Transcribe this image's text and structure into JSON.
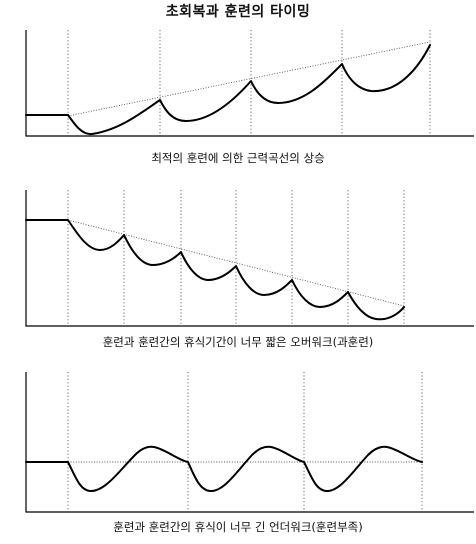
{
  "title": "초회복과 훈련의 타이밍",
  "diagrams": [
    {
      "id": "optimal",
      "caption": "최적의 훈련에 의한 근력곡선의 상승"
    },
    {
      "id": "overwork",
      "caption": "훈련과 훈련간의 휴식기간이 너무 짧은 오버워크(과훈련)"
    },
    {
      "id": "underwork",
      "caption": "훈련과 훈련간의 휴식이 너무 긴 언더워크(훈련부족)"
    }
  ]
}
